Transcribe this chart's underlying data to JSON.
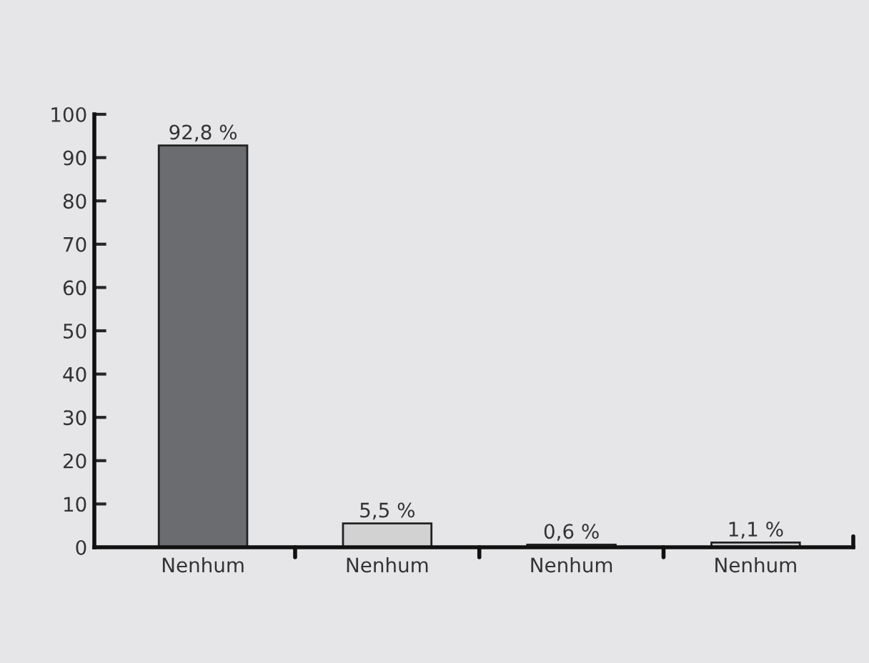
{
  "chart_data": {
    "type": "bar",
    "categories": [
      "Nenhum",
      "Nenhum",
      "Nenhum",
      "Nenhum"
    ],
    "values": [
      92.8,
      5.5,
      0.6,
      1.1
    ],
    "colors": [
      "#6b6c6f",
      "#d2d2d3",
      "#6b6c6f",
      "#d2d2d3"
    ],
    "value_labels": [
      "92,8 %",
      "5,5 %",
      "0,6 %",
      "1,1 %"
    ],
    "ylim": [
      0,
      100
    ],
    "yticks": [
      0,
      10,
      20,
      30,
      40,
      50,
      60,
      70,
      80,
      90,
      100
    ],
    "grid": false,
    "legend": false
  }
}
